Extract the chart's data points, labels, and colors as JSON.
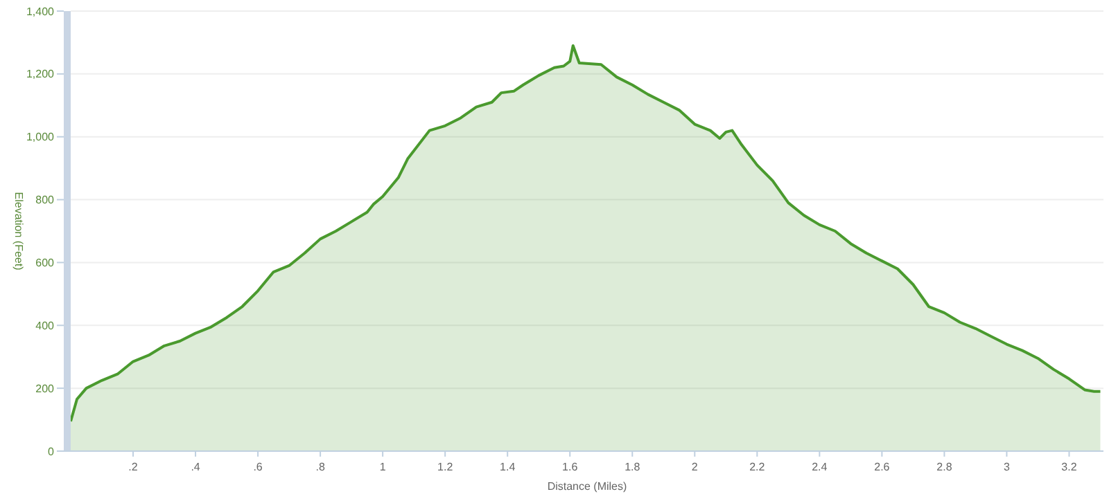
{
  "chart_data": {
    "type": "area",
    "xlabel": "Distance (Miles)",
    "ylabel": "Elevation (Feet)",
    "x": [
      0,
      0.02,
      0.05,
      0.1,
      0.15,
      0.2,
      0.25,
      0.3,
      0.35,
      0.4,
      0.45,
      0.5,
      0.55,
      0.6,
      0.65,
      0.7,
      0.75,
      0.8,
      0.85,
      0.9,
      0.95,
      0.97,
      1.0,
      1.05,
      1.08,
      1.15,
      1.2,
      1.25,
      1.3,
      1.35,
      1.38,
      1.42,
      1.45,
      1.5,
      1.55,
      1.58,
      1.6,
      1.61,
      1.63,
      1.7,
      1.75,
      1.8,
      1.85,
      1.9,
      1.95,
      2.0,
      2.05,
      2.08,
      2.1,
      2.12,
      2.15,
      2.2,
      2.25,
      2.3,
      2.35,
      2.4,
      2.45,
      2.5,
      2.55,
      2.6,
      2.65,
      2.7,
      2.75,
      2.8,
      2.85,
      2.9,
      2.95,
      3.0,
      3.05,
      3.1,
      3.15,
      3.2,
      3.25,
      3.28,
      3.3
    ],
    "series": [
      {
        "color": "#4a9a2e",
        "values": [
          95,
          165,
          200,
          225,
          245,
          285,
          305,
          335,
          350,
          375,
          395,
          425,
          460,
          510,
          570,
          590,
          630,
          675,
          700,
          730,
          760,
          785,
          810,
          870,
          930,
          1020,
          1035,
          1060,
          1095,
          1110,
          1140,
          1145,
          1165,
          1195,
          1220,
          1225,
          1240,
          1290,
          1235,
          1230,
          1190,
          1165,
          1135,
          1110,
          1085,
          1040,
          1020,
          995,
          1015,
          1020,
          975,
          910,
          860,
          790,
          750,
          720,
          700,
          660,
          630,
          605,
          580,
          530,
          460,
          440,
          410,
          390,
          365,
          340,
          320,
          295,
          260,
          230,
          195,
          190,
          190
        ]
      }
    ],
    "xlim": [
      0,
      3.31
    ],
    "xticks": [
      {
        "value": 0.2,
        "label": ".2"
      },
      {
        "value": 0.4,
        "label": ".4"
      },
      {
        "value": 0.6,
        "label": ".6"
      },
      {
        "value": 0.8,
        "label": ".8"
      },
      1,
      1.2,
      1.4,
      1.6,
      1.8,
      2,
      2.2,
      2.4,
      2.6,
      2.8,
      3,
      3.2
    ],
    "ylim": [
      0,
      1400
    ],
    "yticks": [
      0,
      200,
      400,
      600,
      800,
      {
        "value": 1000,
        "label": "1,000"
      },
      {
        "value": 1200,
        "label": "1,200"
      },
      {
        "value": 1400,
        "label": "1,400"
      }
    ],
    "grid": "y"
  }
}
